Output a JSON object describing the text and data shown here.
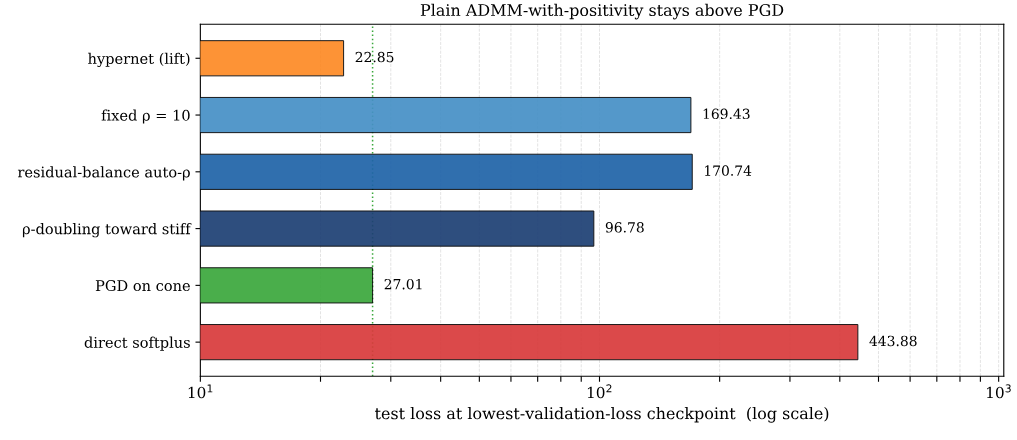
{
  "chart_data": {
    "type": "bar",
    "orientation": "horizontal",
    "title": "Plain ADMM-with-positivity stays above PGD",
    "xlabel": "test loss at lowest-validation-loss checkpoint  (log scale)",
    "categories": [
      "hypernet (lift)",
      "fixed ρ = 10",
      "residual-balance auto-ρ",
      "ρ-doubling toward stiff",
      "PGD on cone",
      "direct softplus"
    ],
    "values": [
      22.85,
      169.43,
      170.74,
      96.78,
      27.01,
      443.88
    ],
    "colors": [
      "#fd8a25",
      "#4690c6",
      "#1f63a8",
      "#1d3f74",
      "#3ba83c",
      "#d83a3b"
    ],
    "data_labels": true,
    "log": "x",
    "grid": "x",
    "xlim": [
      10,
      1030
    ],
    "xticks": [
      {
        "value": 10,
        "label": "10$^{1}$"
      },
      {
        "value": 20,
        "label": null
      },
      {
        "value": 30,
        "label": null
      },
      {
        "value": 40,
        "label": null
      },
      {
        "value": 50,
        "label": null
      },
      {
        "value": 60,
        "label": null
      },
      {
        "value": 70,
        "label": null
      },
      {
        "value": 80,
        "label": null
      },
      {
        "value": 90,
        "label": null
      },
      {
        "value": 100,
        "label": "10$^{2}$"
      },
      {
        "value": 200,
        "label": null
      },
      {
        "value": 300,
        "label": null
      },
      {
        "value": 400,
        "label": null
      },
      {
        "value": 500,
        "label": null
      },
      {
        "value": 600,
        "label": null
      },
      {
        "value": 700,
        "label": null
      },
      {
        "value": 800,
        "label": null
      },
      {
        "value": 900,
        "label": null
      },
      {
        "value": 1000,
        "label": "10$^{3}$"
      }
    ],
    "ref_lines": [
      {
        "axis": "x",
        "value": 27.01,
        "color": "#3ba83c",
        "line_style": "dotted"
      }
    ]
  }
}
